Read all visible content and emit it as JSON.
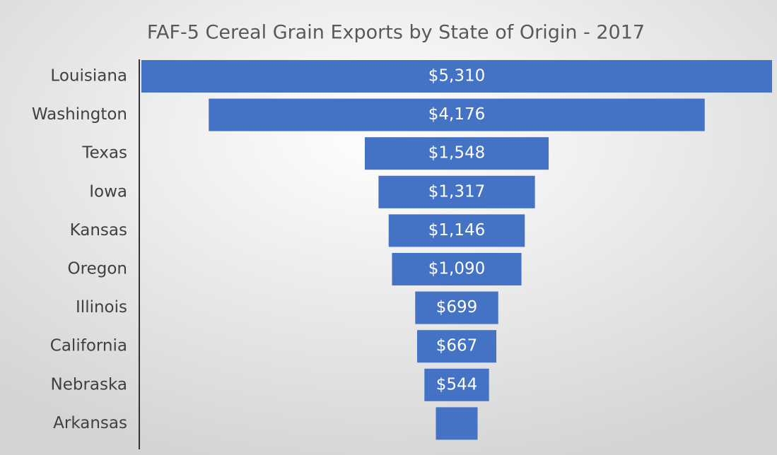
{
  "chart_data": {
    "type": "funnel",
    "title": "FAF-5 Cereal Grain Exports by State of Origin - 2017",
    "categories": [
      "Louisiana",
      "Washington",
      "Texas",
      "Iowa",
      "Kansas",
      "Oregon",
      "Illinois",
      "California",
      "Nebraska",
      "Arkansas"
    ],
    "values": [
      5310,
      4176,
      1548,
      1317,
      1146,
      1090,
      699,
      667,
      544,
      351
    ],
    "value_labels": [
      "$5,310",
      "$4,176",
      "$1,548",
      "$1,317",
      "$1,146",
      "$1,090",
      "$699",
      "$667",
      "$544",
      null
    ],
    "color": "#4472c4"
  }
}
